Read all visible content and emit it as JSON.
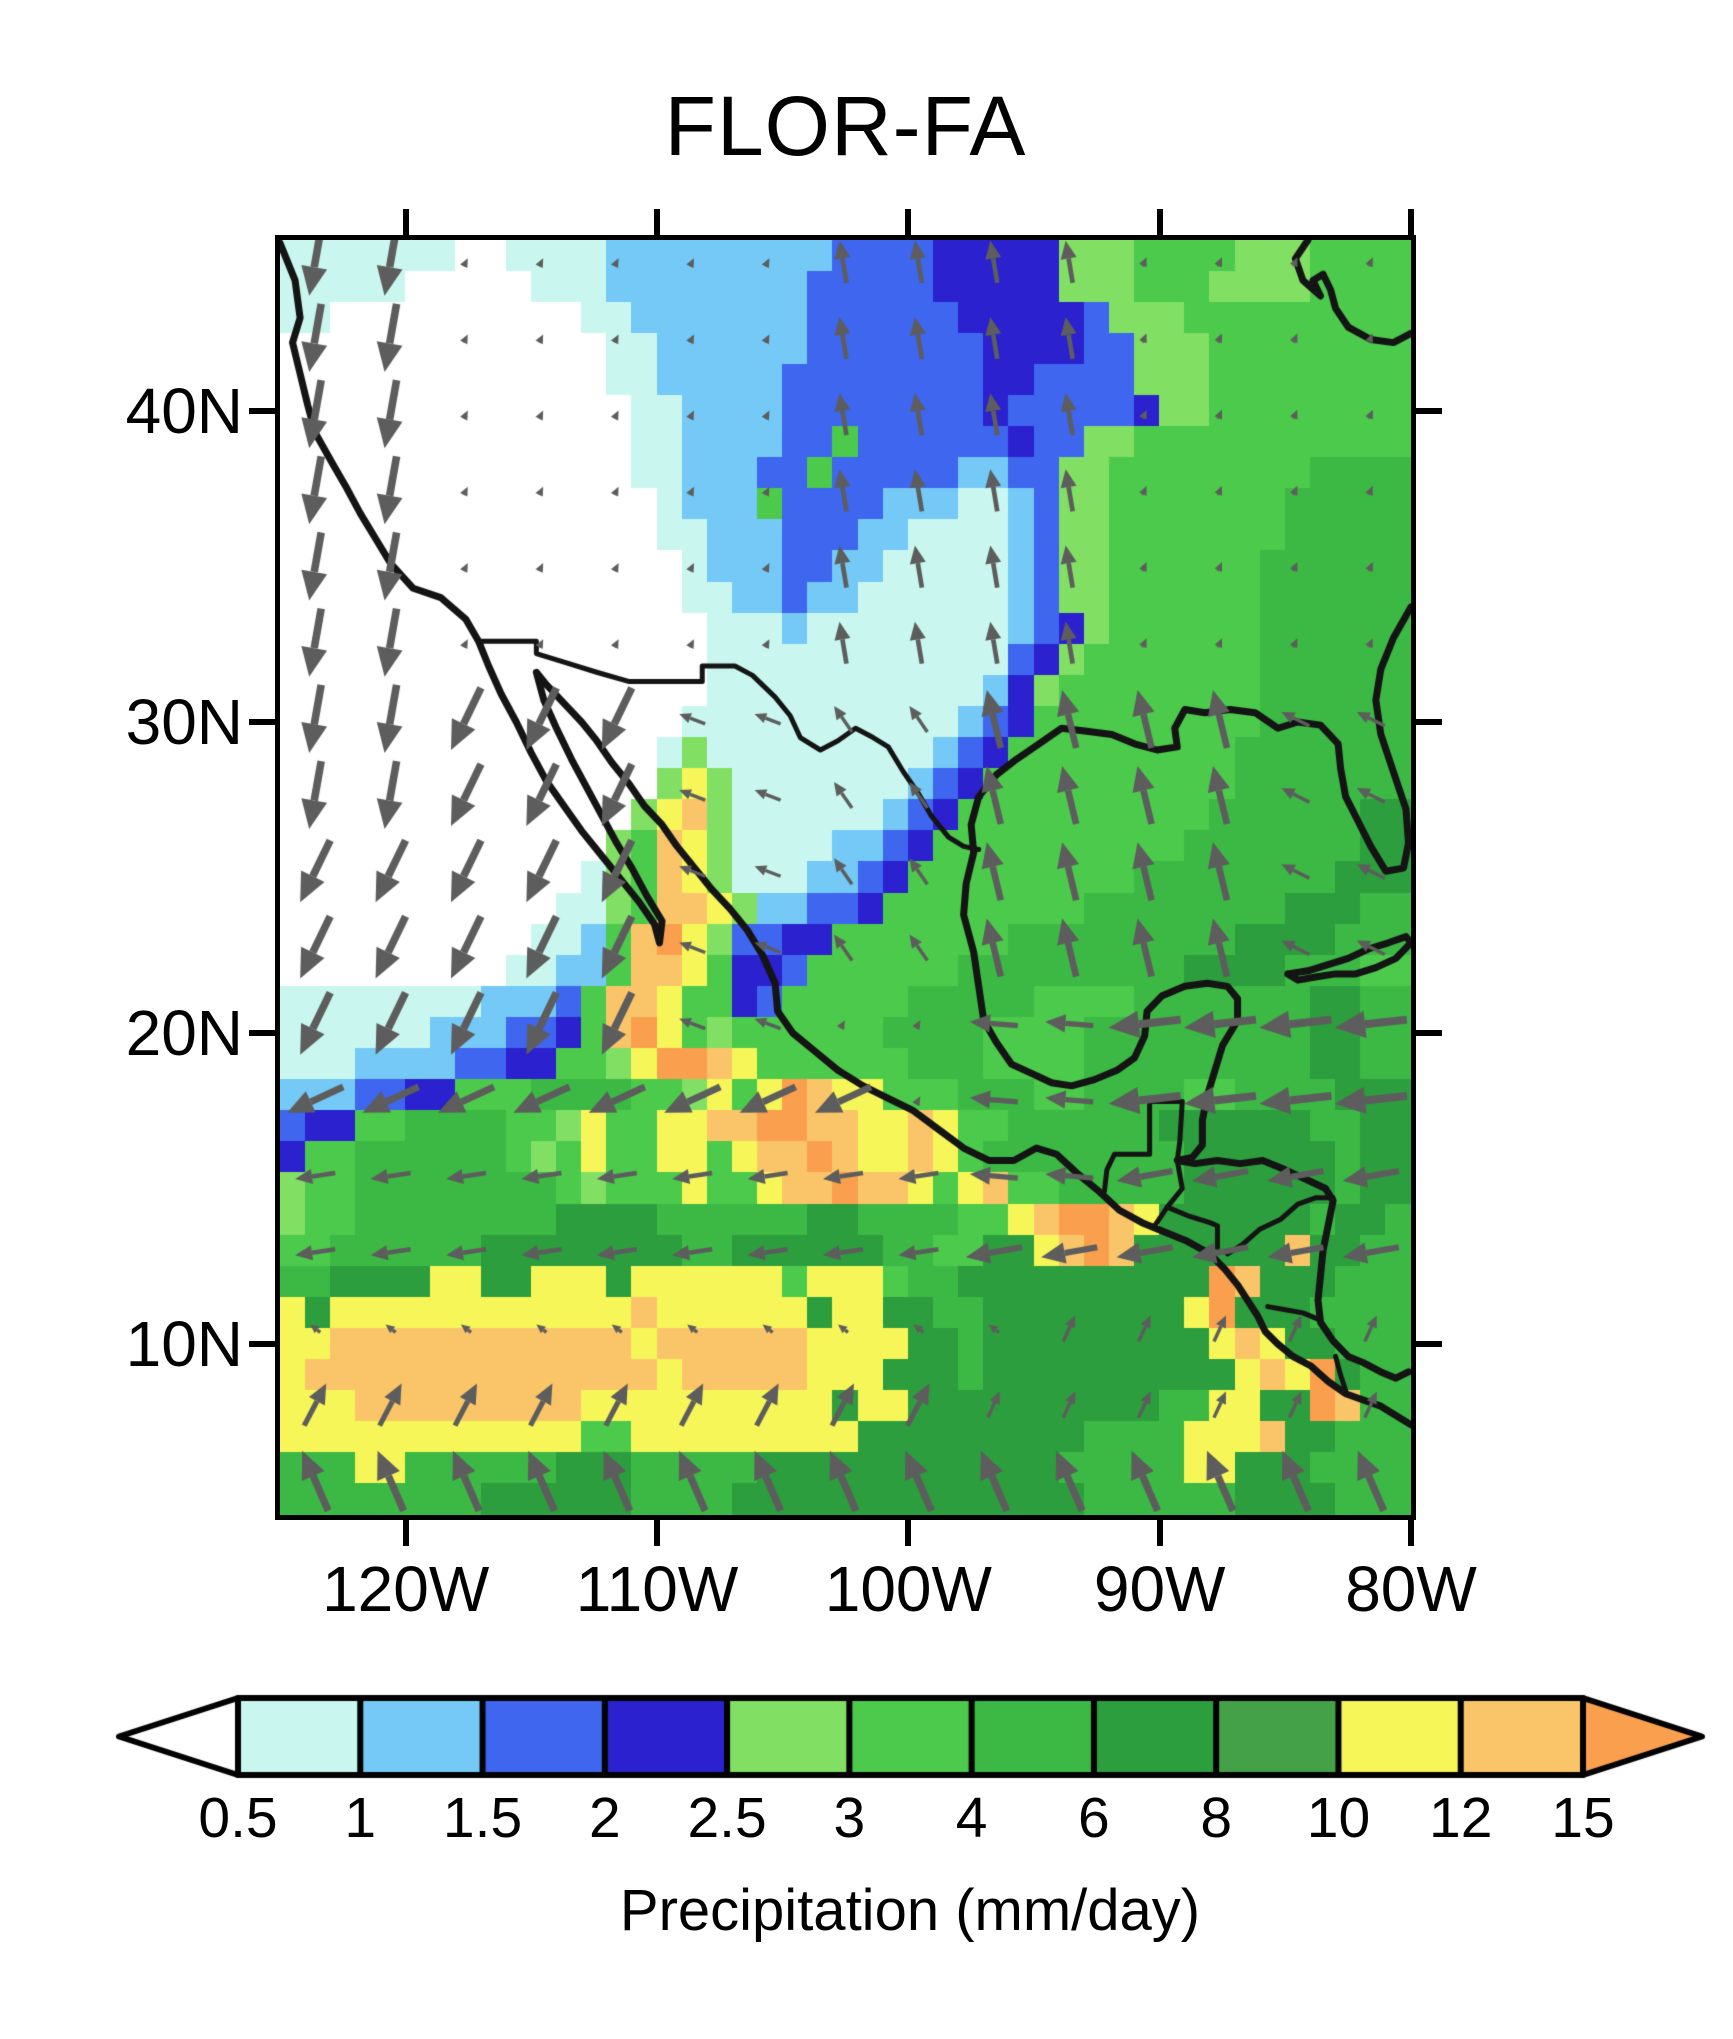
{
  "title": "FLOR-FA",
  "axes": {
    "lat_ticks": [
      {
        "label": "40N",
        "lat": 40
      },
      {
        "label": "30N",
        "lat": 30
      },
      {
        "label": "20N",
        "lat": 20
      },
      {
        "label": "10N",
        "lat": 10
      }
    ],
    "lon_ticks": [
      {
        "label": "120W",
        "lon": -120
      },
      {
        "label": "110W",
        "lon": -110
      },
      {
        "label": "100W",
        "lon": -100
      },
      {
        "label": "90W",
        "lon": -90
      },
      {
        "label": "80W",
        "lon": -80
      }
    ]
  },
  "colorbar": {
    "caption": "Precipitation (mm/day)",
    "tick_labels": [
      "0.5",
      "1",
      "1.5",
      "2",
      "2.5",
      "3",
      "4",
      "6",
      "8",
      "10",
      "12",
      "15"
    ],
    "cell_colors": [
      "#c9f7ef",
      "#74c9f6",
      "#3f66ee",
      "#2b21ce",
      "#81df63",
      "#4cca4b",
      "#3cb944",
      "#2d9e3e",
      "#45a148",
      "#f6f659",
      "#fac568"
    ],
    "under_color": "#ffffff",
    "over_color": "#f99f4d",
    "outline_color": "#000000"
  },
  "chart_data": {
    "type": "heatmap",
    "title": "FLOR-FA",
    "variable": "Precipitation (mm/day)",
    "levels": [
      0.5,
      1,
      1.5,
      2,
      2.5,
      3,
      4,
      6,
      8,
      10,
      12,
      15
    ],
    "lon_range": [
      -125,
      -80
    ],
    "lat_range": [
      4.5,
      45.5
    ],
    "ncols": 45,
    "nrows": 41,
    "palette": {
      "0": "#ffffff",
      "1": "#c9f7ef",
      "2": "#74c9f6",
      "3": "#3f66ee",
      "4": "#2b21ce",
      "5": "#81df63",
      "6": "#4cca4b",
      "7": "#3cb944",
      "8": "#2d9e3e",
      "9": "#45a148",
      "a": "#f6f659",
      "b": "#fac568",
      "c": "#f99f4d"
    },
    "grid_rows": [
      "111111100111122222222233334444455566665556666",
      "111110000011122222222333334444455566655556666",
      "110000000000112222222333333444443555666666666",
      "000000000000011222222333333344443355566666666",
      "000000000000011222223333333344333355566666666",
      "000000000000001122223333333343333345566666666",
      "000000000000001122223363333334335566666666666",
      "000000000000001122233633333223355666666667777",
      "000000000000000122263333222112355666666677777",
      "000000000000000112223332211112355666666677777",
      "000000000000000012223322111112355666666777777",
      "000000000000000011223221111112355666666777777",
      "000000000000000001112111111112345666666777777",
      "000000000000000001111111111113456666666777777",
      "000000000000000001111111111124566666666777777",
      "000000000000000011111111111234666666666777777",
      "000000000000000151111111112346666666667777777",
      "0000000000000005a5111111123466666666667777777",
      "000000000000005ab5111111234666666666677777788",
      "000000000000056ba5111122346666666666777777788",
      "000000000000156ba5111223466666666677777777888",
      "000000000001156bba522334666666667777777788877",
      "00000000001126bca5334466666667777777778888777",
      "00000000011226bba6443666666777777777888877766",
      "1111111122236bba66436666677777666677777778877",
      "1111112223346bca65666666777766667777777778877",
      "11122223344665accba66666677766667777777778877",
      "22233446667777665a6acbaa666777667777667777888",
      "344667777665a66aabbccbbaaba667777778888887788",
      "466777777656a66aa6abbcbaaba677777777888888788",
      "5667777777765666a66abbcbba6ab6677777888888788",
      "56677777777888877777788777766abccba8888887887",
      "667777778888888877888888776688abcb888888b8877",
      "778888aa88aaa8aaaaaa6aaa6778888888888cb888777",
      "a8aaaaaaaaaaaabaaaaaa8aa887788888888ac8887777",
      "aabbbbbbbbbbbbabbbbbbaaaa887888888888aba88777",
      "abbbbbbbbbbbbbbabbbbbaaa88878888888888abac877",
      "aaabbbbbbbbbaaaaaaaaaa8aa888888888877aa88cb77",
      "aaaaaaaaaaaa66aaaaaaaaa8888888887777aaab88777",
      "777aa7777778887777788888888888877777aa8887777",
      "777777778888887777888888888888887777778888777"
    ],
    "coastlines": {
      "color": "#141414",
      "width": 7,
      "paths": [
        [
          -125,
          45.4,
          -124.4,
          44.2,
          -124.2,
          43,
          -124.5,
          42.2,
          -124.2,
          41.2,
          -123.9,
          40.2,
          -123.6,
          39.3,
          -122.9,
          38.3,
          -122.4,
          37.6,
          -121.8,
          36.7,
          -121.2,
          35.9,
          -120.6,
          35.1,
          -119.7,
          34.3,
          -118.6,
          34,
          -117.6,
          33.3,
          -117.1,
          32.6,
          -116.7,
          31.8,
          -116.2,
          30.9,
          -115.6,
          30,
          -115,
          29,
          -114.4,
          28.1,
          -113.7,
          27.3,
          -113,
          26.5,
          -112.2,
          25.7,
          -111.4,
          24.9,
          -110.7,
          24.2,
          -110.1,
          23.5,
          -109.9,
          22.9,
          -109.8,
          23.6,
          -110.4,
          24.4,
          -111,
          25.3,
          -111.6,
          26.1,
          -112.2,
          27,
          -112.8,
          27.9,
          -113.4,
          28.8,
          -114,
          29.8,
          -114.5,
          30.7,
          -114.8,
          31.6,
          -114.4,
          31.2,
          -113.7,
          30.6,
          -113,
          30,
          -112.4,
          29.4,
          -111.8,
          28.7,
          -111.1,
          28,
          -110.5,
          27.3,
          -109.8,
          26.7,
          -109.2,
          26,
          -108.5,
          25.3,
          -107.8,
          24.6,
          -107.1,
          24,
          -106.4,
          23.3,
          -105.8,
          22.5,
          -105.3,
          21.6,
          -105.2,
          20.7,
          -104.6,
          20,
          -103.7,
          19.4,
          -102.8,
          18.8,
          -101.8,
          18.3,
          -100.8,
          17.9,
          -99.8,
          17.5,
          -98.8,
          16.9,
          -97.8,
          16.3,
          -96.8,
          15.9,
          -95.8,
          15.9,
          -94.9,
          16.3,
          -94.1,
          16.1,
          -93.3,
          15.5,
          -92.4,
          14.9,
          -91.6,
          14.3,
          -90.7,
          13.9,
          -89.8,
          13.6,
          -88.9,
          13.3,
          -88,
          12.9,
          -87.4,
          12.4,
          -86.9,
          11.9,
          -86.5,
          11.4,
          -86.1,
          10.9,
          -85.8,
          10.4,
          -85.3,
          10,
          -84.7,
          9.6,
          -84,
          9.3,
          -83.3,
          8.8,
          -82.6,
          8.4,
          -81.9,
          8.2,
          -81.2,
          8,
          -80.6,
          7.7,
          -80,
          7.4
        ],
        [
          -80,
          33.7,
          -80.7,
          32.7,
          -81.2,
          31.7,
          -81.4,
          30.7,
          -81.2,
          29.6,
          -80.7,
          28.4,
          -80.2,
          27.2,
          -80.1,
          26.1,
          -80.3,
          25.3,
          -81,
          25.2,
          -81.6,
          26,
          -82.1,
          26.8,
          -82.6,
          27.6,
          -82.8,
          28.5,
          -82.9,
          29.3,
          -83.6,
          29.9,
          -84.5,
          30,
          -85.3,
          29.8,
          -86.2,
          30.3,
          -87.2,
          30.4,
          -88.2,
          30.3,
          -89,
          30.4,
          -89.4,
          29.8,
          -89.3,
          29.2,
          -90.1,
          29.1,
          -91,
          29.3,
          -91.9,
          29.6,
          -92.9,
          29.7,
          -93.9,
          29.8,
          -94.8,
          29.3,
          -95.7,
          28.8,
          -96.5,
          28.3,
          -97.2,
          27.6,
          -97.5,
          26.7,
          -97.4,
          25.8,
          -97.7,
          24.8,
          -97.8,
          23.8,
          -97.4,
          22.6,
          -97.2,
          21.5,
          -97,
          20.4,
          -96.5,
          19.7,
          -95.9,
          19,
          -95.1,
          18.7,
          -94.3,
          18.4,
          -93.5,
          18.3,
          -92.6,
          18.5,
          -91.7,
          18.8,
          -91,
          19.2,
          -90.6,
          19.9,
          -90.5,
          20.7,
          -89.9,
          21.2,
          -89,
          21.5,
          -88.1,
          21.6,
          -87.3,
          21.5,
          -86.9,
          21.1,
          -86.9,
          20.4,
          -87.5,
          19.6,
          -87.8,
          18.8,
          -88.1,
          18,
          -88.3,
          17.2,
          -88.3,
          16.4,
          -88.7,
          16,
          -89.3,
          15.9,
          -88.6,
          15.8,
          -87.7,
          15.9,
          -86.8,
          15.8,
          -85.9,
          15.9,
          -85,
          15.6,
          -84.2,
          15.3,
          -83.4,
          15,
          -83.1,
          14.6,
          -83.3,
          13.8,
          -83.5,
          13,
          -83.6,
          12.2,
          -83.7,
          11.4,
          -83.6,
          10.7,
          -83.1,
          10.1,
          -82.5,
          9.6,
          -81.9,
          9.4,
          -81.2,
          9.1,
          -80.6,
          8.9,
          -80.1,
          9.1
        ],
        [
          -84.1,
          45.5,
          -84.6,
          44.9,
          -84.3,
          44.2,
          -83.6,
          43.7,
          -83.9,
          44.2,
          -83.5,
          44.4,
          -83.2,
          43.9,
          -83,
          43.3,
          -82.5,
          42.7,
          -81.6,
          42.3,
          -80.7,
          42.2,
          -80,
          42.5
        ],
        [
          -84.9,
          21.9,
          -84.1,
          22,
          -83.3,
          22.2,
          -82.5,
          22.4,
          -81.7,
          22.7,
          -80.9,
          22.9,
          -80.2,
          23.1,
          -80,
          22.9,
          -80.6,
          22.4,
          -81.4,
          22.1,
          -82.2,
          21.9,
          -83,
          21.9,
          -83.8,
          21.8,
          -84.5,
          21.7,
          -84.9,
          21.9
        ]
      ]
    },
    "borders": {
      "color": "#141414",
      "width": 5,
      "paths": [
        [
          -117.1,
          32.6,
          -115.9,
          32.6,
          -114.8,
          32.6,
          -114.8,
          32.2,
          -113.6,
          31.9,
          -112.4,
          31.6,
          -111.1,
          31.3,
          -109.7,
          31.3,
          -108.2,
          31.3,
          -108.2,
          31.8,
          -106.9,
          31.8,
          -106.2,
          31.5,
          -105.3,
          30.8,
          -104.7,
          30.2,
          -104.3,
          29.5,
          -103.5,
          29.1,
          -102.8,
          29.4,
          -102.1,
          29.8,
          -101.4,
          29.5,
          -100.8,
          29.2,
          -100.2,
          28.4,
          -99.6,
          27.7,
          -99.1,
          27,
          -98.4,
          26.3,
          -97.8,
          26,
          -97.2,
          25.9
        ],
        [
          -92.2,
          14.9,
          -92.1,
          15.6,
          -91.8,
          16.1,
          -90.4,
          16.1,
          -90.4,
          17.8,
          -89.1,
          17.8,
          -89.2,
          16.5,
          -89.3,
          15.9
        ],
        [
          -89.3,
          15.9,
          -89.1,
          15,
          -89.7,
          14.4,
          -90.2,
          13.8
        ],
        [
          -89.7,
          14.4,
          -88.8,
          14.1,
          -88,
          13.9,
          -87.7,
          13.8,
          -87.7,
          13.1
        ],
        [
          -87.3,
          12.9,
          -86.7,
          13.2,
          -86,
          13.7,
          -85.2,
          14,
          -84.5,
          14.5,
          -83.8,
          14.7,
          -83.1,
          14.7
        ],
        [
          -85.7,
          11.2,
          -85,
          11.1,
          -84.3,
          11,
          -83.7,
          10.8
        ],
        [
          -83,
          9.6,
          -82.8,
          9,
          -82.6,
          8.5
        ]
      ]
    },
    "wind": {
      "color": "#5d5d5d",
      "scale": 20,
      "min_len": 8,
      "max_len": 86,
      "grid": {
        "lon0": -123.6,
        "dlon": 3.0,
        "nx": 15,
        "lat0": 5.6,
        "dlat": 2.45,
        "ny": 17
      },
      "default": {
        "u": 0.2,
        "v": 0.35
      },
      "zones": [
        {
          "name": "california-coastal-southerly",
          "lon": [
            -125,
            -119.5
          ],
          "lat": [
            27,
            45.5
          ],
          "u": -0.6,
          "v": -3.4
        },
        {
          "name": "us-interior-calm",
          "lon": [
            -119.5,
            -104
          ],
          "lat": [
            32,
            45.5
          ],
          "u": 0.15,
          "v": 0.3
        },
        {
          "name": "plains-southerly",
          "lon": [
            -104,
            -92.5
          ],
          "lat": [
            30.5,
            45.5
          ],
          "u": -0.35,
          "v": 2.1
        },
        {
          "name": "us-east-calm",
          "lon": [
            -92.5,
            -80
          ],
          "lat": [
            30.5,
            45.5
          ],
          "u": 0.2,
          "v": 0.45
        },
        {
          "name": "baja-offshore-southerly",
          "lon": [
            -125,
            -110
          ],
          "lat": [
            20.2,
            32
          ],
          "u": -1.5,
          "v": -3.1
        },
        {
          "name": "nw-mexico-weak-easterly",
          "lon": [
            -110,
            -104
          ],
          "lat": [
            20.2,
            32
          ],
          "u": -1.3,
          "v": 0.5
        },
        {
          "name": "ne-mexico",
          "lon": [
            -104,
            -97
          ],
          "lat": [
            21,
            30.5
          ],
          "u": -0.9,
          "v": 1.3
        },
        {
          "name": "gulf-southerly",
          "lon": [
            -97,
            -86.5
          ],
          "lat": [
            20.5,
            30.5
          ],
          "u": -0.7,
          "v": 2.9
        },
        {
          "name": "florida-straits",
          "lon": [
            -86.5,
            -80
          ],
          "lat": [
            20.5,
            30.5
          ],
          "u": -1.4,
          "v": 0.7
        },
        {
          "name": "caribbean-easterly",
          "lon": [
            -92,
            -80
          ],
          "lat": [
            16,
            20.5
          ],
          "u": -3.6,
          "v": -0.4
        },
        {
          "name": "campeche-easterly",
          "lon": [
            -97,
            -92
          ],
          "lat": [
            15,
            20.5
          ],
          "u": -2.4,
          "v": 0.2
        },
        {
          "name": "subtropic-trades-wsw",
          "lon": [
            -125,
            -102
          ],
          "lat": [
            16.8,
            20.2
          ],
          "u": -2.8,
          "v": -1.3
        },
        {
          "name": "trade-band-westward",
          "lon": [
            -125,
            -97
          ],
          "lat": [
            12.5,
            16.8
          ],
          "u": -2.0,
          "v": -0.3
        },
        {
          "name": "central-america-easterly",
          "lon": [
            -97,
            -80
          ],
          "lat": [
            12,
            16
          ],
          "u": -2.8,
          "v": -0.5
        },
        {
          "name": "itcz-calm",
          "lon": [
            -125,
            -96
          ],
          "lat": [
            10.5,
            12.5
          ],
          "u": -0.5,
          "v": 0.4
        },
        {
          "name": "itcz-south-nne",
          "lon": [
            -125,
            -97.5
          ],
          "lat": [
            7.5,
            10.5
          ],
          "u": 1.1,
          "v": 2.1
        },
        {
          "name": "panama-bight",
          "lon": [
            -97.5,
            -80
          ],
          "lat": [
            7,
            12
          ],
          "u": 0.6,
          "v": 1.3
        },
        {
          "name": "cross-equatorial-southerly",
          "lon": [
            -125,
            -80
          ],
          "lat": [
            6,
            7.5
          ],
          "u": 0.3,
          "v": 3.2
        },
        {
          "name": "south-edge-southerly",
          "lon": [
            -125,
            -80
          ],
          "lat": [
            4.5,
            6
          ],
          "u": -1.3,
          "v": 3.0
        }
      ]
    }
  }
}
